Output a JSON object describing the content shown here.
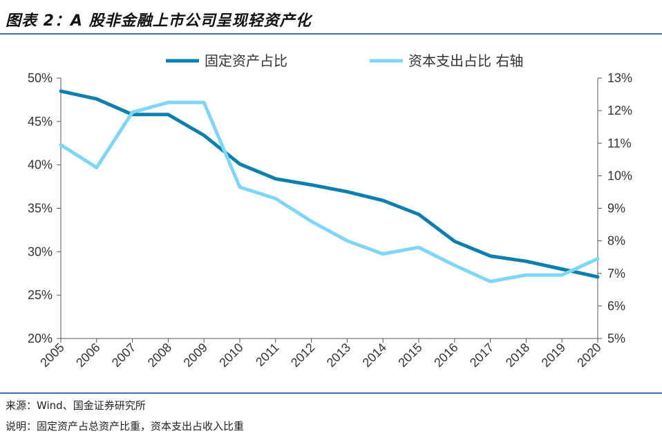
{
  "title": "图表 2：A 股非金融上市公司呈现轻资产化",
  "source": "来源：Wind、国金证券研究所",
  "explanation": "说明：固定资产占总资产比重，资本支出占收入比重",
  "colors": {
    "series_dark": "#0a7fae",
    "series_light": "#7fd6f7",
    "rule": "#3b6fb0"
  },
  "chart_data": {
    "type": "line",
    "title": "",
    "x": [
      "2005",
      "2006",
      "2007",
      "2008",
      "2009",
      "2010",
      "2011",
      "2012",
      "2013",
      "2014",
      "2015",
      "2016",
      "2017",
      "2018",
      "2019",
      "2020"
    ],
    "series": [
      {
        "name": "固定资产占比",
        "axis": "left",
        "values": [
          48.5,
          47.6,
          45.8,
          45.8,
          43.4,
          40.1,
          38.4,
          37.7,
          36.9,
          35.9,
          34.3,
          31.2,
          29.5,
          28.9,
          28.0,
          27.1
        ]
      },
      {
        "name": "资本支出占比 右轴",
        "axis": "right",
        "values": [
          10.95,
          10.25,
          11.95,
          12.25,
          12.25,
          9.65,
          9.3,
          8.6,
          8.0,
          7.6,
          7.8,
          7.25,
          6.75,
          6.95,
          6.95,
          7.45
        ]
      }
    ],
    "y_left": {
      "min": 20,
      "max": 50,
      "step": 5,
      "ticks": [
        "20%",
        "25%",
        "30%",
        "35%",
        "40%",
        "45%",
        "50%"
      ]
    },
    "y_right": {
      "min": 5,
      "max": 13,
      "step": 1,
      "ticks": [
        "5%",
        "6%",
        "7%",
        "8%",
        "9%",
        "10%",
        "11%",
        "12%",
        "13%"
      ]
    },
    "legend_position": "top-center",
    "grid": false
  }
}
